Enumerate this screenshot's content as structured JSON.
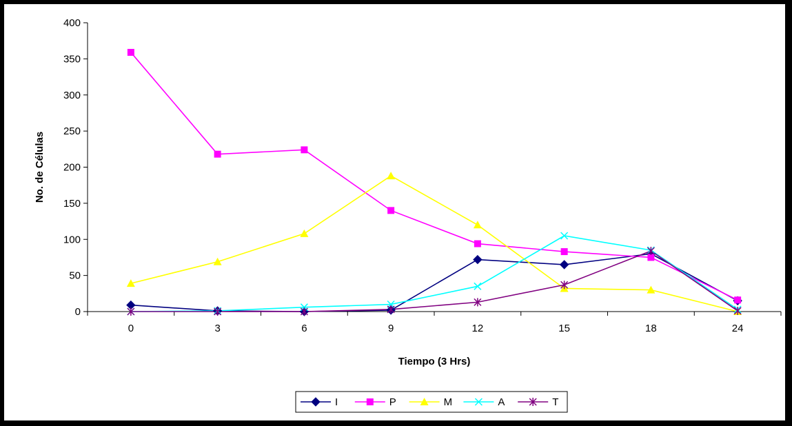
{
  "chart_data": {
    "type": "line",
    "title": "",
    "xlabel": "Tiempo (3 Hrs)",
    "ylabel": "No. de Células",
    "categories": [
      "0",
      "3",
      "6",
      "9",
      "12",
      "15",
      "18",
      "24"
    ],
    "ylim": [
      0,
      400
    ],
    "yticks": [
      0,
      50,
      100,
      150,
      200,
      250,
      300,
      350,
      400
    ],
    "grid": false,
    "legend_position": "bottom",
    "series": [
      {
        "name": "I",
        "color": "#000080",
        "marker": "diamond",
        "values": [
          9,
          1,
          0,
          2,
          72,
          65,
          80,
          15
        ]
      },
      {
        "name": "P",
        "color": "#FF00FF",
        "marker": "square",
        "values": [
          359,
          218,
          224,
          140,
          94,
          83,
          75,
          16
        ]
      },
      {
        "name": "M",
        "color": "#FFFF00",
        "marker": "triangle",
        "values": [
          39,
          69,
          108,
          188,
          120,
          32,
          30,
          0
        ]
      },
      {
        "name": "A",
        "color": "#00FFFF",
        "marker": "x",
        "values": [
          0,
          1,
          6,
          10,
          35,
          105,
          85,
          3
        ]
      },
      {
        "name": "T",
        "color": "#800080",
        "marker": "star",
        "values": [
          0,
          0,
          0,
          3,
          13,
          37,
          84,
          1
        ]
      }
    ]
  }
}
